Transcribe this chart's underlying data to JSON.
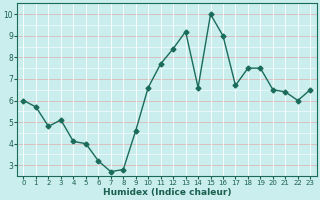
{
  "x": [
    0,
    1,
    2,
    3,
    4,
    5,
    6,
    7,
    8,
    9,
    10,
    11,
    12,
    13,
    14,
    15,
    16,
    17,
    18,
    19,
    20,
    21,
    22,
    23
  ],
  "y": [
    6.0,
    5.7,
    4.8,
    5.1,
    4.1,
    4.0,
    3.2,
    2.7,
    2.8,
    4.6,
    6.6,
    7.7,
    8.4,
    9.2,
    6.6,
    10.0,
    9.0,
    6.7,
    7.5,
    7.5,
    6.5,
    6.4,
    6.0,
    6.5
  ],
  "xlabel": "Humidex (Indice chaleur)",
  "ylim": [
    2.5,
    10.5
  ],
  "yticks": [
    3,
    4,
    5,
    6,
    7,
    8,
    9,
    10
  ],
  "xticks": [
    0,
    1,
    2,
    3,
    4,
    5,
    6,
    7,
    8,
    9,
    10,
    11,
    12,
    13,
    14,
    15,
    16,
    17,
    18,
    19,
    20,
    21,
    22,
    23
  ],
  "line_color": "#1a6b5a",
  "marker": "D",
  "marker_size": 2.5,
  "bg_color": "#caeeed",
  "grid_major_color": "#dab8b8",
  "grid_minor_color": "#ffffff",
  "xlabel_color": "#1a5f50",
  "tick_color": "#1a5f50"
}
